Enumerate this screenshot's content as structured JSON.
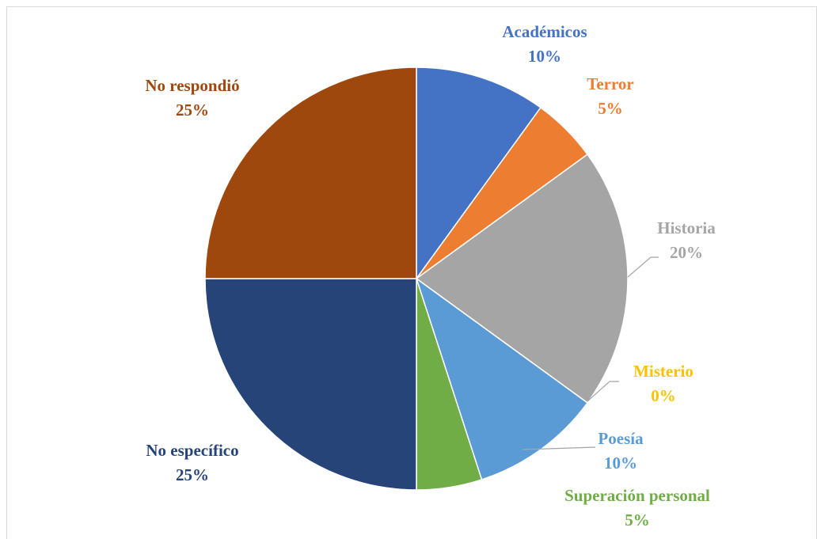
{
  "chart_data": {
    "type": "pie",
    "categories": [
      "Académicos",
      "Terror",
      "Historia",
      "Misterio",
      "Poesía",
      "Superación personal",
      "No específico",
      "No respondió"
    ],
    "values": [
      10,
      5,
      20,
      0,
      10,
      5,
      25,
      25
    ],
    "value_labels": [
      "10%",
      "5%",
      "20%",
      "0%",
      "10%",
      "5%",
      "25%",
      "25%"
    ],
    "colors": [
      "#4472c4",
      "#ed7d31",
      "#a5a5a5",
      "#ffc000",
      "#5b9bd5",
      "#70ad47",
      "#264478",
      "#9e480e"
    ]
  }
}
